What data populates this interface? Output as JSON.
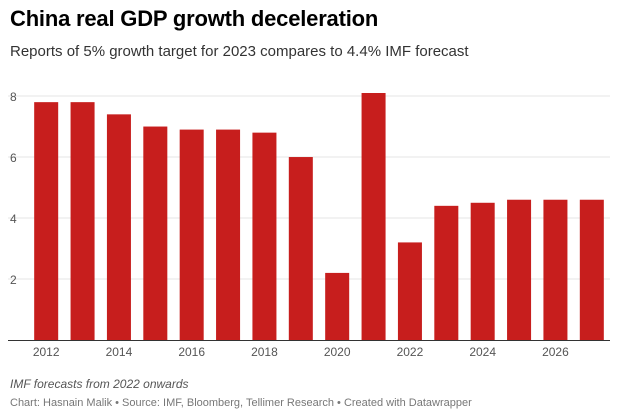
{
  "header": {
    "title": "China real GDP growth deceleration",
    "subtitle": "Reports of 5% growth target for 2023 compares to 4.4% IMF forecast"
  },
  "footer": {
    "note": "IMF forecasts from 2022 onwards",
    "credits": "Chart: Hasnain Malik • Source: IMF, Bloomberg, Tellimer Research • Created with Datawrapper"
  },
  "chart_data": {
    "type": "bar",
    "categories": [
      "2012",
      "2013",
      "2014",
      "2015",
      "2016",
      "2017",
      "2018",
      "2019",
      "2020",
      "2021",
      "2022",
      "2023",
      "2024",
      "2025",
      "2026",
      "2027"
    ],
    "values": [
      7.8,
      7.8,
      7.4,
      7.0,
      6.9,
      6.9,
      6.8,
      6.0,
      2.2,
      8.1,
      3.2,
      4.4,
      4.5,
      4.6,
      4.6,
      4.6
    ],
    "x_tick_labels": [
      "2012",
      "2014",
      "2016",
      "2018",
      "2020",
      "2022",
      "2024",
      "2026"
    ],
    "y_ticks": [
      2,
      4,
      6,
      8
    ],
    "ylim": [
      0,
      8.1
    ],
    "title": "China real GDP growth deceleration",
    "xlabel": "",
    "ylabel": "",
    "grid": true,
    "bar_color": "#c71e1d",
    "gridline_color": "#e5e5e5"
  }
}
